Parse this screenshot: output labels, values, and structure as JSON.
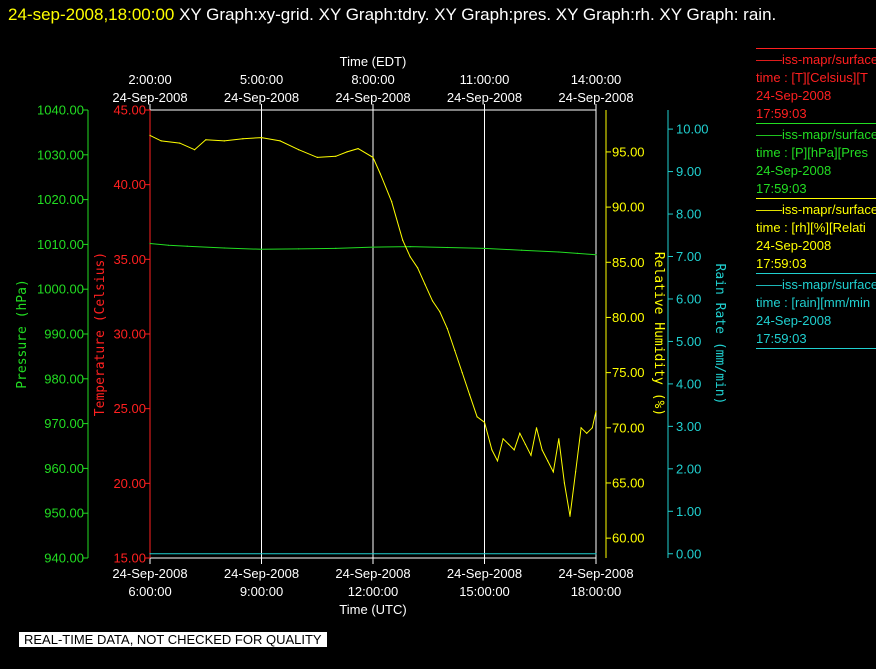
{
  "header": {
    "timestamp": "24-sep-2008,18:00:00",
    "graph_titles": " XY Graph:xy-grid.  XY Graph:tdry.  XY Graph:pres.  XY Graph:rh.  XY Graph: rain."
  },
  "footer": {
    "quality_notice": "REAL-TIME DATA, NOT CHECKED FOR QUALITY"
  },
  "legend": [
    {
      "line1": "iss-mapr/surface",
      "line2": "time : [T][Celsius][T",
      "line3": "24-Sep-2008",
      "line4": "17:59:03",
      "color": "#ff2020"
    },
    {
      "line1": "iss-mapr/surface",
      "line2": "time : [P][hPa][Pres",
      "line3": "24-Sep-2008",
      "line4": "17:59:03",
      "color": "#22dd22"
    },
    {
      "line1": "iss-mapr/surface",
      "line2": "time : [rh][%][Relati",
      "line3": "24-Sep-2008",
      "line4": "17:59:03",
      "color": "#ffff00"
    },
    {
      "line1": "iss-mapr/surface",
      "line2": "time : [rain][mm/min",
      "line3": "24-Sep-2008",
      "line4": "17:59:03",
      "color": "#20d0d0"
    }
  ],
  "chart_data": {
    "type": "line",
    "x_bottom": {
      "title": "Time (UTC)",
      "ticks": [
        {
          "date": "24-Sep-2008",
          "time": "6:00:00"
        },
        {
          "date": "24-Sep-2008",
          "time": "9:00:00"
        },
        {
          "date": "24-Sep-2008",
          "time": "12:00:00"
        },
        {
          "date": "24-Sep-2008",
          "time": "15:00:00"
        },
        {
          "date": "24-Sep-2008",
          "time": "18:00:00"
        }
      ]
    },
    "x_top": {
      "title": "Time (EDT)",
      "ticks": [
        {
          "date": "24-Sep-2008",
          "time": "2:00:00"
        },
        {
          "date": "24-Sep-2008",
          "time": "5:00:00"
        },
        {
          "date": "24-Sep-2008",
          "time": "8:00:00"
        },
        {
          "date": "24-Sep-2008",
          "time": "11:00:00"
        },
        {
          "date": "24-Sep-2008",
          "time": "14:00:00"
        }
      ]
    },
    "x_range_hours_utc": [
      6,
      18
    ],
    "grid": true,
    "axes": {
      "pressure": {
        "label": "Pressure (hPa)",
        "color": "#22dd22",
        "range": [
          940,
          1040
        ],
        "ticks": [
          "940.00",
          "950.00",
          "960.00",
          "970.00",
          "980.00",
          "990.00",
          "1000.00",
          "1010.00",
          "1020.00",
          "1030.00",
          "1040.00"
        ]
      },
      "temperature": {
        "label": "Temperature (Celsius)",
        "color": "#ff2020",
        "range": [
          15,
          45
        ],
        "ticks": [
          "15.00",
          "20.00",
          "25.00",
          "30.00",
          "35.00",
          "40.00",
          "45.00"
        ]
      },
      "humidity": {
        "label": "Relative Humidity (%)",
        "color": "#ffff00",
        "range": [
          58.2,
          98.8
        ],
        "ticks": [
          "60.00",
          "65.00",
          "70.00",
          "75.00",
          "80.00",
          "85.00",
          "90.00",
          "95.00"
        ]
      },
      "rain": {
        "label": "Rain Rate (mm/min)",
        "color": "#20d0d0",
        "range": [
          -0.1,
          10.45
        ],
        "ticks": [
          "0.00",
          "1.00",
          "2.00",
          "3.00",
          "4.00",
          "5.00",
          "6.00",
          "7.00",
          "8.00",
          "9.00",
          "10.00"
        ]
      }
    },
    "series": [
      {
        "axis": "pressure",
        "color": "#22dd22",
        "x": [
          6.0,
          6.5,
          7.0,
          8.0,
          9.0,
          10.0,
          11.0,
          12.0,
          13.0,
          14.0,
          15.0,
          16.0,
          17.0,
          17.5,
          18.0
        ],
        "y": [
          1010.2,
          1009.8,
          1009.6,
          1009.2,
          1008.9,
          1009.0,
          1009.1,
          1009.4,
          1009.5,
          1009.3,
          1009.1,
          1008.7,
          1008.3,
          1008.0,
          1007.7
        ]
      },
      {
        "axis": "humidity",
        "color": "#ffff00",
        "x": [
          6.0,
          6.3,
          6.8,
          7.2,
          7.5,
          8.0,
          8.5,
          9.0,
          9.5,
          10.0,
          10.5,
          11.0,
          11.3,
          11.6,
          12.0,
          12.2,
          12.5,
          12.8,
          13.0,
          13.2,
          13.4,
          13.6,
          13.8,
          14.0,
          14.2,
          14.4,
          14.6,
          14.8,
          15.0,
          15.2,
          15.35,
          15.5,
          15.65,
          15.8,
          15.95,
          16.1,
          16.25,
          16.4,
          16.55,
          16.7,
          16.85,
          17.0,
          17.15,
          17.3,
          17.45,
          17.6,
          17.75,
          17.9,
          18.0
        ],
        "y": [
          96.5,
          96.0,
          95.8,
          95.2,
          96.1,
          96.0,
          96.2,
          96.3,
          96.0,
          95.2,
          94.5,
          94.6,
          95.0,
          95.3,
          94.5,
          93.0,
          90.5,
          87.0,
          85.5,
          84.5,
          83.0,
          81.5,
          80.5,
          79.0,
          77.0,
          75.0,
          73.0,
          71.0,
          70.5,
          68.0,
          67.0,
          69.0,
          68.5,
          68.0,
          69.5,
          68.5,
          67.5,
          70.0,
          68.0,
          67.0,
          66.0,
          69.0,
          65.0,
          62.0,
          66.0,
          70.0,
          69.5,
          70.0,
          71.5
        ]
      },
      {
        "axis": "rain",
        "color": "#20d0d0",
        "x": [
          6.0,
          18.0
        ],
        "y": [
          0.0,
          0.0
        ]
      }
    ]
  }
}
